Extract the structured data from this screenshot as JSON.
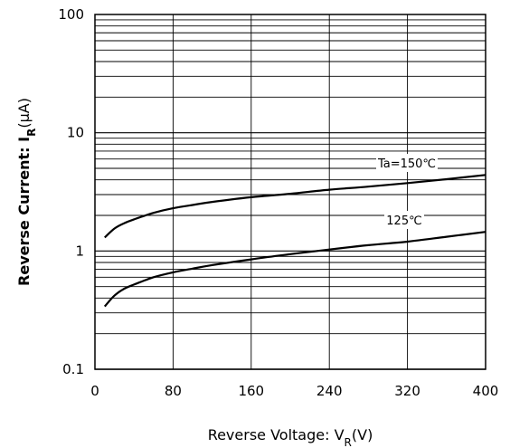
{
  "chart_data": {
    "type": "line",
    "xlabel": "Reverse Voltage: V",
    "xlabel_sub": "R",
    "xlabel_unit": "(V)",
    "ylabel": "Reverse Current: I",
    "ylabel_sub": "R",
    "ylabel_unit": "(μA)",
    "x_ticks": [
      "0",
      "80",
      "160",
      "240",
      "320",
      "400"
    ],
    "y_ticks": [
      "0.1",
      "1",
      "10",
      "100"
    ],
    "xlim": [
      0,
      400
    ],
    "ylim": [
      0.1,
      100
    ],
    "y_scale": "log",
    "grid": true,
    "series": [
      {
        "name": "Ta=150℃",
        "x": [
          10,
          20,
          30,
          40,
          60,
          80,
          100,
          120,
          160,
          200,
          240,
          280,
          320,
          360,
          400
        ],
        "y": [
          1.3,
          1.55,
          1.72,
          1.85,
          2.1,
          2.3,
          2.45,
          2.6,
          2.85,
          3.05,
          3.3,
          3.5,
          3.75,
          4.05,
          4.4
        ]
      },
      {
        "name": "125℃",
        "x": [
          10,
          20,
          30,
          40,
          60,
          80,
          100,
          120,
          160,
          200,
          240,
          280,
          320,
          360,
          400
        ],
        "y": [
          0.34,
          0.42,
          0.48,
          0.52,
          0.6,
          0.66,
          0.71,
          0.76,
          0.85,
          0.94,
          1.03,
          1.12,
          1.2,
          1.32,
          1.45
        ]
      }
    ]
  }
}
